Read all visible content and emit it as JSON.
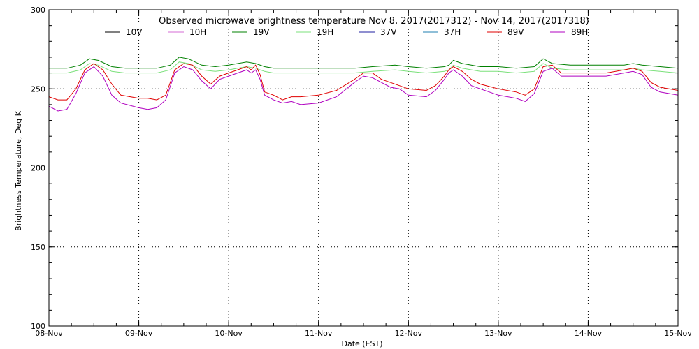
{
  "chart_data": {
    "type": "line",
    "title": "Observed microwave brightness temperature Nov  8, 2017(2017312) - Nov 14, 2017(2017318)",
    "xlabel": "Date (EST)",
    "ylabel": "Brightness Temperature, Deg K",
    "ylim": [
      100,
      300
    ],
    "xlim": [
      0,
      7
    ],
    "yticks": [
      100,
      150,
      200,
      250,
      300
    ],
    "xtick_labels": [
      "08-Nov",
      "09-Nov",
      "10-Nov",
      "11-Nov",
      "12-Nov",
      "13-Nov",
      "14-Nov",
      "15-Nov"
    ],
    "grid": true,
    "legend_position": "top",
    "series": [
      {
        "name": "10V",
        "color": "#000000",
        "x": [],
        "y": []
      },
      {
        "name": "10H",
        "color": "#d66bd6",
        "x": [],
        "y": []
      },
      {
        "name": "19V",
        "color": "#008000",
        "x": [
          0,
          0.2,
          0.35,
          0.45,
          0.55,
          0.7,
          0.85,
          1,
          1.2,
          1.35,
          1.45,
          1.55,
          1.7,
          1.85,
          2,
          2.1,
          2.2,
          2.3,
          2.4,
          2.5,
          2.7,
          3,
          3.2,
          3.4,
          3.6,
          3.85,
          4,
          4.2,
          4.4,
          4.45,
          4.5,
          4.6,
          4.8,
          5,
          5.2,
          5.4,
          5.5,
          5.6,
          5.8,
          6,
          6.2,
          6.4,
          6.5,
          6.6,
          6.8,
          7
        ],
        "y": [
          263,
          263,
          265,
          269,
          268,
          264,
          263,
          263,
          263,
          265,
          270,
          269,
          265,
          264,
          265,
          266,
          267,
          266,
          264,
          263,
          263,
          263,
          263,
          263,
          264,
          265,
          264,
          263,
          264,
          265,
          268,
          266,
          264,
          264,
          263,
          264,
          269,
          266,
          265,
          265,
          265,
          265,
          266,
          265,
          264,
          263
        ]
      },
      {
        "name": "19H",
        "color": "#7be07b",
        "x": [
          0,
          0.2,
          0.35,
          0.45,
          0.55,
          0.7,
          0.85,
          1,
          1.2,
          1.35,
          1.45,
          1.55,
          1.7,
          1.85,
          2,
          2.1,
          2.2,
          2.3,
          2.4,
          2.5,
          2.7,
          3,
          3.2,
          3.4,
          3.6,
          3.85,
          4,
          4.2,
          4.4,
          4.45,
          4.5,
          4.6,
          4.8,
          5,
          5.2,
          5.4,
          5.5,
          5.6,
          5.8,
          6,
          6.2,
          6.4,
          6.5,
          6.6,
          6.8,
          7
        ],
        "y": [
          260,
          260,
          262,
          266,
          265,
          261,
          260,
          260,
          260,
          262,
          267,
          266,
          262,
          261,
          262,
          263,
          264,
          263,
          261,
          260,
          260,
          260,
          260,
          260,
          261,
          262,
          261,
          260,
          261,
          262,
          265,
          263,
          261,
          261,
          260,
          261,
          266,
          263,
          262,
          262,
          262,
          262,
          263,
          262,
          261,
          260
        ]
      },
      {
        "name": "37V",
        "color": "#1f1fa0",
        "x": [],
        "y": []
      },
      {
        "name": "37H",
        "color": "#1f7fb0",
        "x": [],
        "y": []
      },
      {
        "name": "89V",
        "color": "#e00000",
        "x": [
          0,
          0.1,
          0.2,
          0.3,
          0.4,
          0.5,
          0.6,
          0.7,
          0.8,
          1,
          1.1,
          1.2,
          1.3,
          1.4,
          1.5,
          1.6,
          1.7,
          1.8,
          1.9,
          2,
          2.1,
          2.2,
          2.25,
          2.3,
          2.35,
          2.4,
          2.5,
          2.6,
          2.7,
          2.8,
          3,
          3.2,
          3.4,
          3.5,
          3.6,
          3.7,
          3.8,
          3.9,
          4,
          4.2,
          4.3,
          4.4,
          4.45,
          4.5,
          4.6,
          4.7,
          4.8,
          5,
          5.2,
          5.3,
          5.4,
          5.5,
          5.6,
          5.7,
          5.8,
          6,
          6.2,
          6.4,
          6.5,
          6.6,
          6.7,
          6.8,
          7
        ],
        "y": [
          245,
          243,
          243,
          250,
          262,
          266,
          262,
          253,
          246,
          244,
          244,
          243,
          246,
          262,
          266,
          265,
          258,
          253,
          258,
          260,
          262,
          264,
          262,
          265,
          259,
          248,
          246,
          243,
          245,
          245,
          246,
          249,
          256,
          260,
          260,
          256,
          254,
          252,
          250,
          249,
          252,
          258,
          262,
          264,
          261,
          256,
          253,
          250,
          248,
          246,
          250,
          264,
          265,
          260,
          260,
          260,
          260,
          262,
          263,
          261,
          254,
          251,
          249
        ]
      },
      {
        "name": "89H",
        "color": "#b000c0",
        "x": [
          0,
          0.1,
          0.2,
          0.3,
          0.4,
          0.5,
          0.6,
          0.7,
          0.8,
          1,
          1.1,
          1.2,
          1.3,
          1.4,
          1.5,
          1.6,
          1.7,
          1.8,
          1.9,
          2,
          2.1,
          2.2,
          2.25,
          2.3,
          2.35,
          2.4,
          2.5,
          2.6,
          2.7,
          2.8,
          3,
          3.2,
          3.4,
          3.5,
          3.6,
          3.7,
          3.8,
          3.9,
          4,
          4.2,
          4.3,
          4.4,
          4.45,
          4.5,
          4.6,
          4.7,
          4.8,
          5,
          5.2,
          5.3,
          5.4,
          5.5,
          5.6,
          5.7,
          5.8,
          6,
          6.2,
          6.4,
          6.5,
          6.6,
          6.7,
          6.8,
          7
        ],
        "y": [
          239,
          236,
          237,
          247,
          260,
          264,
          258,
          246,
          241,
          238,
          237,
          238,
          243,
          260,
          264,
          262,
          255,
          250,
          256,
          258,
          260,
          262,
          260,
          262,
          256,
          246,
          243,
          241,
          242,
          240,
          241,
          245,
          254,
          258,
          257,
          254,
          251,
          250,
          246,
          245,
          249,
          256,
          260,
          262,
          258,
          252,
          250,
          246,
          244,
          242,
          247,
          261,
          263,
          258,
          258,
          258,
          258,
          260,
          261,
          259,
          251,
          248,
          246
        ]
      }
    ]
  }
}
